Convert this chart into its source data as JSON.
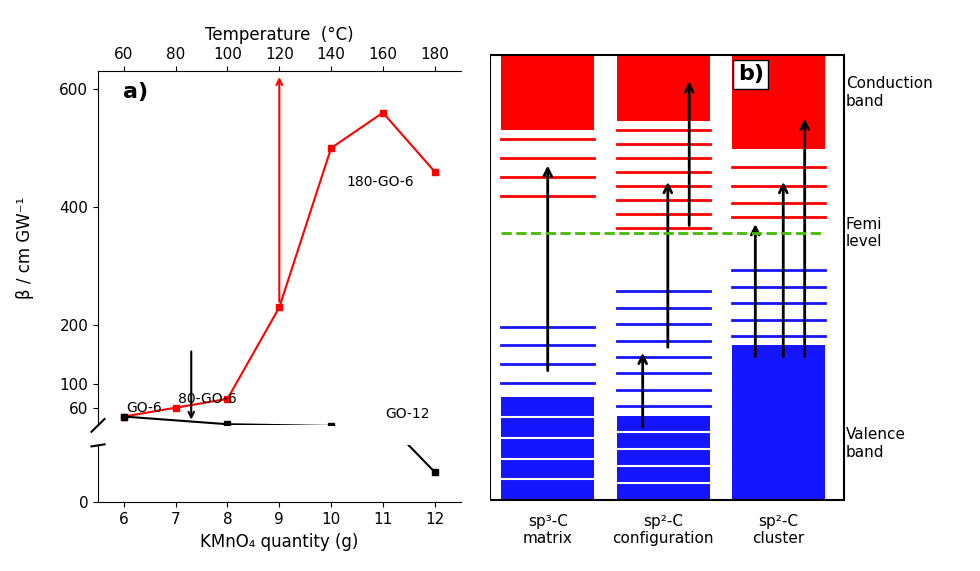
{
  "panel_a": {
    "title_top": "Temperature  (°C)",
    "xlabel": "KMnO₄ quantity (g)",
    "ylabel": "β / cm GW⁻¹",
    "red_x": [
      6,
      7,
      8,
      9,
      10,
      11,
      12
    ],
    "red_y": [
      45,
      60,
      75,
      230,
      500,
      560,
      460
    ],
    "black_x": [
      6,
      8,
      10,
      11,
      12
    ],
    "black_y": [
      45,
      32,
      29,
      22,
      8
    ],
    "bottom_x_ticks": [
      6,
      7,
      8,
      9,
      10,
      11,
      12
    ],
    "top_temp_ticks": [
      60,
      80,
      100,
      120,
      140,
      160,
      180
    ],
    "panel_label": "a)"
  },
  "panel_b": {
    "panel_label": "b)",
    "col1_label": "sp³-C\nmatrix",
    "col2_label": "sp²-C\nconfiguration",
    "col3_label": "sp²-C\ncluster",
    "label_conduction": "Conduction\nband",
    "label_femi": "Femi\nlevel",
    "label_valence": "Valence\nband",
    "red_color": "#FF0000",
    "blue_color": "#1515FF",
    "green_dashed_color": "#44BB00",
    "bg_color": "#FFFFFF"
  }
}
